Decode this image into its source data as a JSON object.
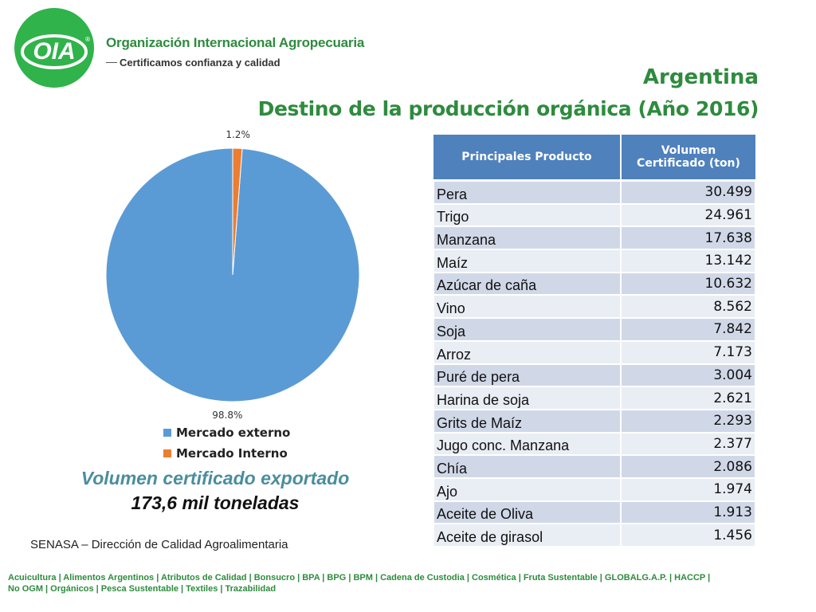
{
  "header": {
    "logo_text": "OIA",
    "org_name": "Organización Internacional Agropecuaria",
    "tagline": "Certificamos confianza y calidad"
  },
  "title": {
    "line1": "Argentina",
    "line2": "Destino de la producción orgánica (Año 2016)"
  },
  "chart_data": {
    "type": "pie",
    "slices": [
      {
        "label": "Mercado externo",
        "value": 98.8,
        "display": "98.8%",
        "color": "#5b9bd5"
      },
      {
        "label": "Mercado Interno",
        "value": 1.2,
        "display": "1.2%",
        "color": "#ed7d31"
      }
    ],
    "legend_position": "bottom"
  },
  "summary": {
    "title": "Volumen certificado exportado",
    "value": "173,6 mil toneladas"
  },
  "source": "SENASA – Dirección de Calidad Agroalimentaria",
  "table": {
    "headers": [
      "Principales Producto",
      "Volumen Certificado (ton)"
    ],
    "rows": [
      {
        "product": "Pera",
        "volume": "30.499"
      },
      {
        "product": "Trigo",
        "volume": "24.961"
      },
      {
        "product": "Manzana",
        "volume": "17.638"
      },
      {
        "product": "Maíz",
        "volume": "13.142"
      },
      {
        "product": "Azúcar de caña",
        "volume": "10.632"
      },
      {
        "product": "Vino",
        "volume": "8.562"
      },
      {
        "product": "Soja",
        "volume": "7.842"
      },
      {
        "product": "Arroz",
        "volume": "7.173"
      },
      {
        "product": "Puré de pera",
        "volume": "3.004"
      },
      {
        "product": "Harina de soja",
        "volume": "2.621"
      },
      {
        "product": "Grits de Maíz",
        "volume": "2.293"
      },
      {
        "product": "Jugo conc. Manzana",
        "volume": "2.377"
      },
      {
        "product": "Chía",
        "volume": "2.086"
      },
      {
        "product": "Ajo",
        "volume": "1.974"
      },
      {
        "product": "Aceite de Oliva",
        "volume": "1.913"
      },
      {
        "product": "Aceite de girasol",
        "volume": "1.456"
      }
    ]
  },
  "footer": {
    "line1": "Acuicultura  |  Alimentos Argentinos  |  Atributos de Calidad  |  Bonsucro  |  BPA |  BPG |  BPM  |  Cadena de Custodia  |  Cosmética  |  Fruta Sustentable  | GLOBALG.A.P.  |  HACCP  |",
    "line2": "No OGM  |  Orgánicos |  Pesca Sustentable  | Textiles | Trazabilidad"
  },
  "colors": {
    "brand_green": "#2e8b3e",
    "table_header": "#4f81bd",
    "row_dark": "#d0d8e8",
    "row_light": "#e9edf4"
  }
}
